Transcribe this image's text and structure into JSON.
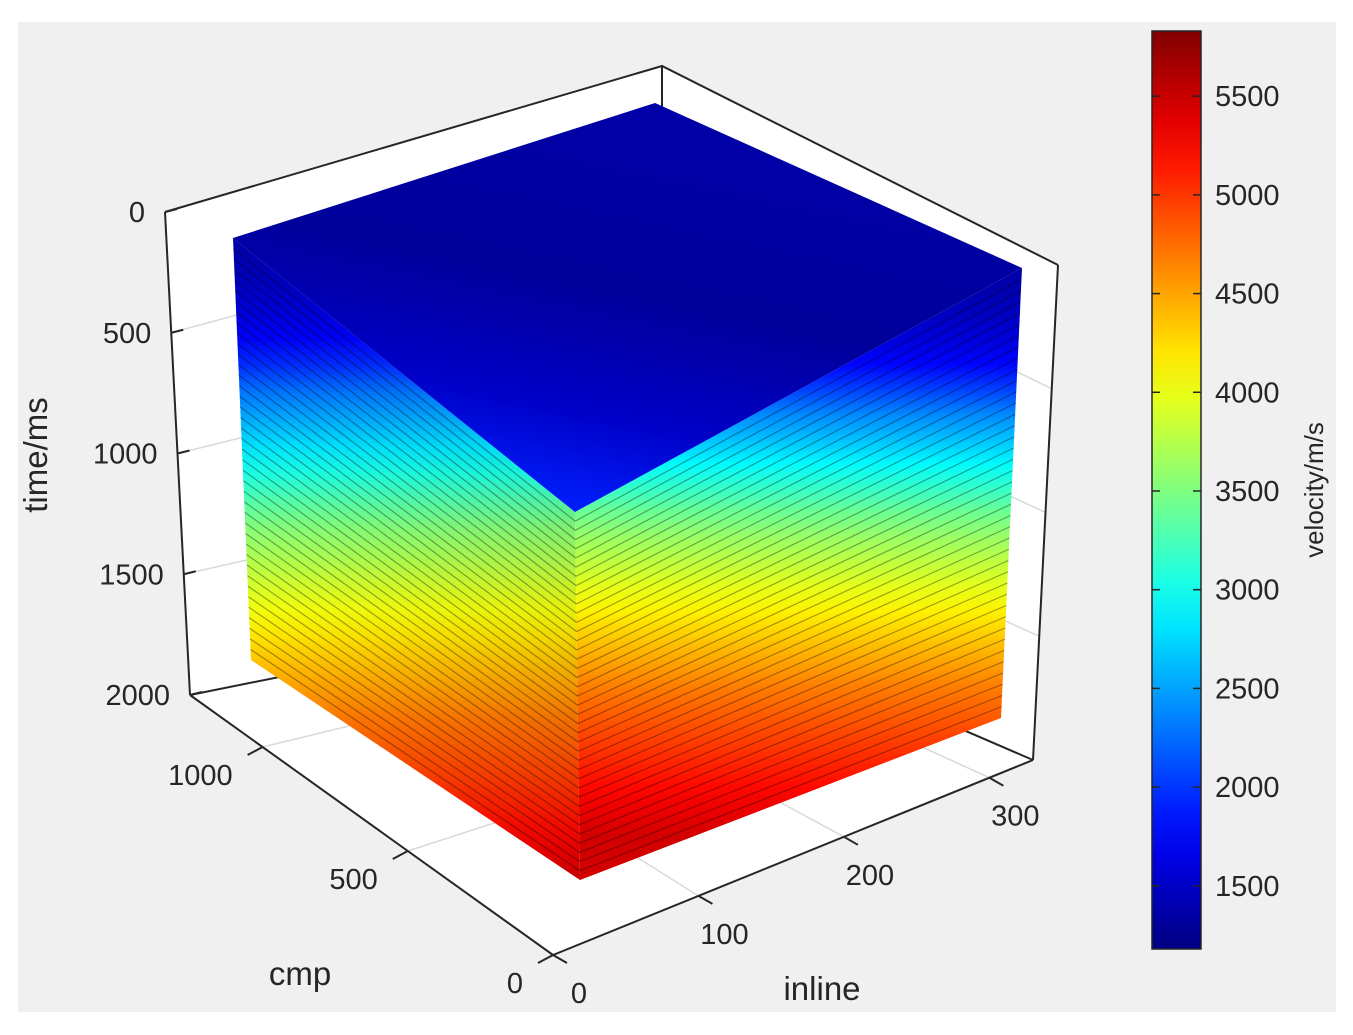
{
  "chart_data": {
    "type": "volume",
    "title": "",
    "axes": {
      "z": {
        "label": "time/ms",
        "ticks": [
          0,
          500,
          1000,
          1500,
          2000
        ],
        "range": [
          0,
          2000
        ],
        "reversed": true
      },
      "cmp": {
        "label": "cmp",
        "ticks": [
          0,
          500,
          1000
        ],
        "range": [
          0,
          1250
        ]
      },
      "inline": {
        "label": "inline",
        "ticks": [
          0,
          100,
          200,
          300
        ],
        "range": [
          0,
          330
        ]
      }
    },
    "colorbar": {
      "label": "velocity/m/s",
      "ticks": [
        1500,
        2000,
        2500,
        3000,
        3500,
        4000,
        4500,
        5000,
        5500
      ],
      "range": [
        1180,
        5830
      ],
      "colormap": "jet"
    },
    "grid": true,
    "velocity_profile": {
      "time_ms": [
        0,
        100,
        200,
        300,
        400,
        500,
        700,
        900,
        1100,
        1300,
        1500,
        1700,
        1900,
        2000
      ],
      "velocity_m_s": [
        1350,
        1400,
        1500,
        1650,
        1900,
        2300,
        2900,
        3500,
        3900,
        4300,
        4700,
        5000,
        5300,
        5450
      ]
    },
    "colors": {
      "background": "#f0f0f0",
      "axes_box": "#ffffff",
      "axis_line": "#262626"
    }
  }
}
